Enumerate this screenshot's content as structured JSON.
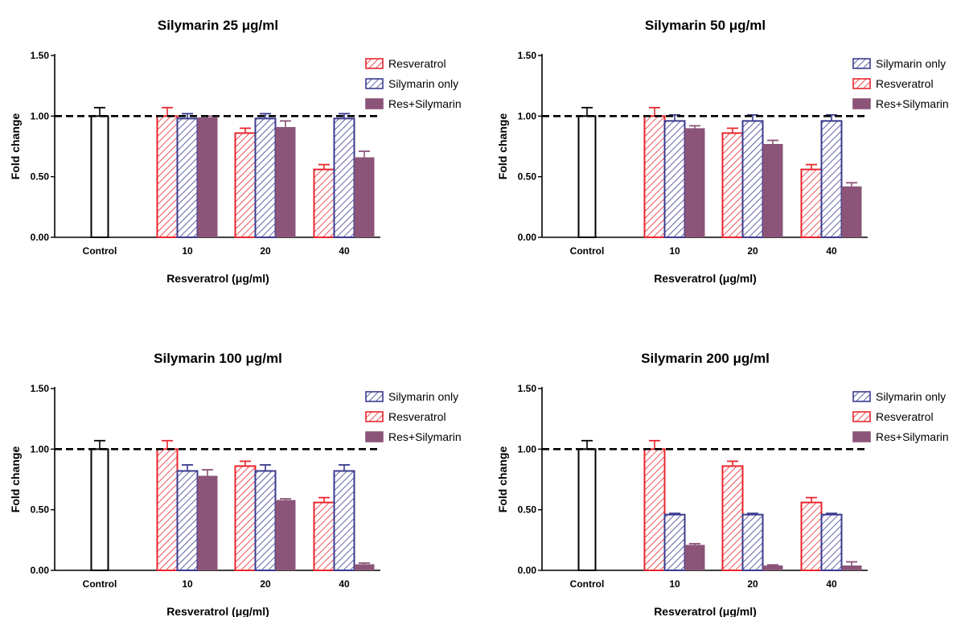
{
  "colors": {
    "control": "#000000",
    "resveratrol": "#e8262d",
    "silymarin_only": "#3b3b8f",
    "combo": "#8b5478",
    "reference": "#000000"
  },
  "chart_data": [
    {
      "type": "bar",
      "title": "Silymarin 25 μg/ml",
      "xlabel": "Resveratrol (μg/ml)",
      "ylabel": "Fold change",
      "ylim": [
        0,
        1.5
      ],
      "yticks": [
        "0.00",
        "0.50",
        "1.00",
        "1.50"
      ],
      "reference_line": 1.0,
      "grid": false,
      "legend_position": "top-right",
      "legend_order": [
        "Resveratrol",
        "Silymarin only",
        "Res+Silymarin"
      ],
      "categories": [
        "Control",
        "10",
        "20",
        "40"
      ],
      "control": {
        "value": 1.0,
        "error": 0.07
      },
      "series": [
        {
          "name": "Resveratrol",
          "values": [
            null,
            1.0,
            0.86,
            0.56
          ],
          "errors": [
            null,
            0.07,
            0.04,
            0.04
          ]
        },
        {
          "name": "Silymarin only",
          "values": [
            null,
            0.98,
            0.98,
            0.98
          ],
          "errors": [
            null,
            0.04,
            0.04,
            0.04
          ]
        },
        {
          "name": "Res+Silymarin",
          "values": [
            null,
            0.99,
            0.91,
            0.66
          ],
          "errors": [
            null,
            0.01,
            0.05,
            0.05
          ]
        }
      ]
    },
    {
      "type": "bar",
      "title": "Silymarin 50 μg/ml",
      "xlabel": "Resveratrol (μg/ml)",
      "ylabel": "Fold change",
      "ylim": [
        0,
        1.5
      ],
      "yticks": [
        "0.00",
        "0.50",
        "1.00",
        "1.50"
      ],
      "reference_line": 1.0,
      "grid": false,
      "legend_position": "top-right",
      "legend_order": [
        "Silymarin only",
        "Resveratrol",
        "Res+Silymarin"
      ],
      "categories": [
        "Control",
        "10",
        "20",
        "40"
      ],
      "control": {
        "value": 1.0,
        "error": 0.07
      },
      "series": [
        {
          "name": "Resveratrol",
          "values": [
            null,
            1.0,
            0.86,
            0.56
          ],
          "errors": [
            null,
            0.07,
            0.04,
            0.04
          ]
        },
        {
          "name": "Silymarin only",
          "values": [
            null,
            0.96,
            0.96,
            0.96
          ],
          "errors": [
            null,
            0.05,
            0.05,
            0.05
          ]
        },
        {
          "name": "Res+Silymarin",
          "values": [
            null,
            0.9,
            0.77,
            0.42
          ],
          "errors": [
            null,
            0.02,
            0.03,
            0.03
          ]
        }
      ]
    },
    {
      "type": "bar",
      "title": "Silymarin 100 μg/ml",
      "xlabel": "Resveratrol (μg/ml)",
      "ylabel": "Fold change",
      "ylim": [
        0,
        1.5
      ],
      "yticks": [
        "0.00",
        "0.50",
        "1.00",
        "1.50"
      ],
      "reference_line": 1.0,
      "grid": false,
      "legend_position": "top-right",
      "legend_order": [
        "Silymarin only",
        "Resveratrol",
        "Res+Silymarin"
      ],
      "categories": [
        "Control",
        "10",
        "20",
        "40"
      ],
      "control": {
        "value": 1.0,
        "error": 0.07
      },
      "series": [
        {
          "name": "Resveratrol",
          "values": [
            null,
            1.0,
            0.86,
            0.56
          ],
          "errors": [
            null,
            0.07,
            0.04,
            0.04
          ]
        },
        {
          "name": "Silymarin only",
          "values": [
            null,
            0.82,
            0.82,
            0.82
          ],
          "errors": [
            null,
            0.05,
            0.05,
            0.05
          ]
        },
        {
          "name": "Res+Silymarin",
          "values": [
            null,
            0.78,
            0.58,
            0.05
          ],
          "errors": [
            null,
            0.05,
            0.01,
            0.01
          ]
        }
      ]
    },
    {
      "type": "bar",
      "title": "Silymarin 200 μg/ml",
      "xlabel": "Resveratrol (μg/ml)",
      "ylabel": "Fold change",
      "ylim": [
        0,
        1.5
      ],
      "yticks": [
        "0.00",
        "0.50",
        "1.00",
        "1.50"
      ],
      "reference_line": 1.0,
      "grid": false,
      "legend_position": "top-right",
      "legend_order": [
        "Silymarin only",
        "Resveratrol",
        "Res+Silymarin"
      ],
      "categories": [
        "Control",
        "10",
        "20",
        "40"
      ],
      "control": {
        "value": 1.0,
        "error": 0.07
      },
      "series": [
        {
          "name": "Resveratrol",
          "values": [
            null,
            1.0,
            0.86,
            0.56
          ],
          "errors": [
            null,
            0.07,
            0.04,
            0.04
          ]
        },
        {
          "name": "Silymarin only",
          "values": [
            null,
            0.46,
            0.46,
            0.46
          ],
          "errors": [
            null,
            0.01,
            0.01,
            0.01
          ]
        },
        {
          "name": "Res+Silymarin",
          "values": [
            null,
            0.21,
            0.04,
            0.04
          ],
          "errors": [
            null,
            0.01,
            0.005,
            0.03
          ]
        }
      ]
    }
  ]
}
